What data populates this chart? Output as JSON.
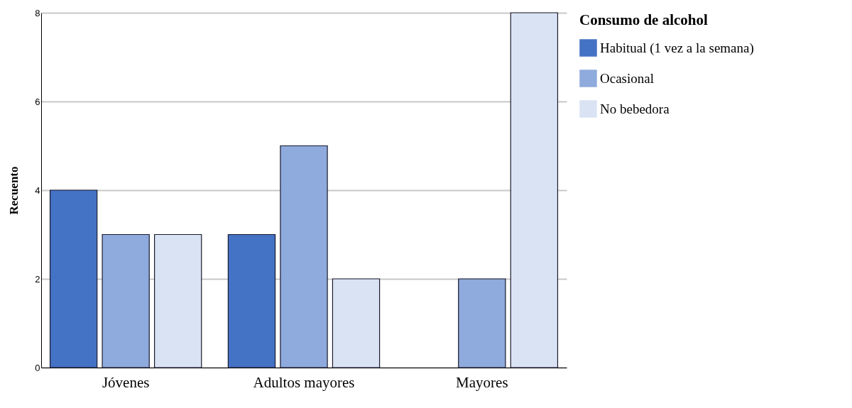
{
  "chart_data": {
    "type": "bar",
    "ylabel": "Recuento",
    "legend_title": "Consumo de alcohol",
    "categories": [
      "Jóvenes",
      "Adultos mayores",
      "Mayores"
    ],
    "series": [
      {
        "name": "Habitual (1 vez a la semana)",
        "color": "#4472c4",
        "values": [
          4,
          3,
          null
        ]
      },
      {
        "name": "Ocasional",
        "color": "#8faadc",
        "values": [
          3,
          5,
          2
        ]
      },
      {
        "name": "No bebedora",
        "color": "#dae3f3",
        "values": [
          3,
          2,
          8
        ]
      }
    ],
    "ylim": [
      0,
      8
    ],
    "yticks": [
      0,
      2,
      4,
      6,
      8
    ],
    "grid": "y",
    "legend": "right"
  }
}
